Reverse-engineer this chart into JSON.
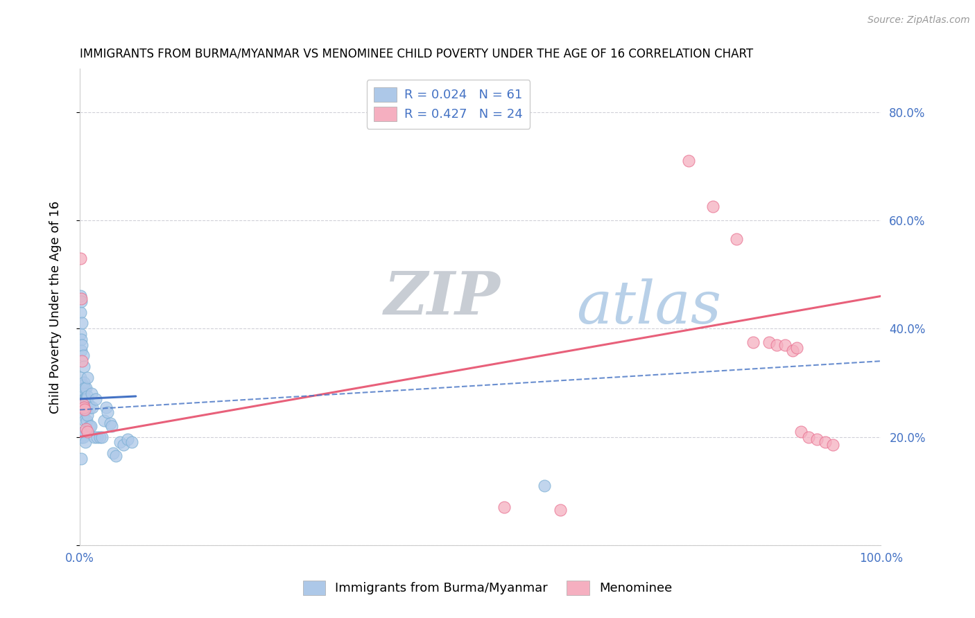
{
  "title": "IMMIGRANTS FROM BURMA/MYANMAR VS MENOMINEE CHILD POVERTY UNDER THE AGE OF 16 CORRELATION CHART",
  "source": "Source: ZipAtlas.com",
  "ylabel": "Child Poverty Under the Age of 16",
  "series1_label": "Immigrants from Burma/Myanmar",
  "series2_label": "Menominee",
  "series1_R": 0.024,
  "series1_N": 61,
  "series2_R": 0.427,
  "series2_N": 24,
  "series1_color": "#adc8e8",
  "series2_color": "#f5afc0",
  "series1_edge": "#7bafd4",
  "series2_edge": "#e87090",
  "trend1_color": "#4472c4",
  "trend2_color": "#e8607a",
  "legend_text_color": "#4472c4",
  "axis_label_color": "#4472c4",
  "background_color": "#ffffff",
  "grid_color": "#d0d0d8",
  "watermark_zip_color": "#c8cdd4",
  "watermark_atlas_color": "#b8d0e8",
  "xlim": [
    0,
    1.0
  ],
  "ylim": [
    0,
    0.88
  ],
  "xticklabels": [
    "0.0%",
    "",
    "",
    "",
    "",
    "100.0%"
  ],
  "yticklabels_right": [
    "",
    "20.0%",
    "40.0%",
    "60.0%",
    "80.0%"
  ],
  "blue_points_x": [
    0.001,
    0.001,
    0.001,
    0.001,
    0.001,
    0.002,
    0.002,
    0.002,
    0.002,
    0.002,
    0.002,
    0.003,
    0.003,
    0.003,
    0.003,
    0.003,
    0.003,
    0.004,
    0.004,
    0.004,
    0.004,
    0.004,
    0.005,
    0.005,
    0.005,
    0.005,
    0.006,
    0.006,
    0.006,
    0.007,
    0.007,
    0.008,
    0.008,
    0.009,
    0.009,
    0.01,
    0.01,
    0.01,
    0.011,
    0.012,
    0.013,
    0.014,
    0.015,
    0.016,
    0.018,
    0.02,
    0.022,
    0.025,
    0.028,
    0.03,
    0.033,
    0.035,
    0.038,
    0.04,
    0.042,
    0.045,
    0.05,
    0.055,
    0.06,
    0.065,
    0.58
  ],
  "blue_points_y": [
    0.46,
    0.43,
    0.39,
    0.31,
    0.2,
    0.45,
    0.38,
    0.36,
    0.27,
    0.27,
    0.16,
    0.41,
    0.37,
    0.29,
    0.275,
    0.25,
    0.2,
    0.35,
    0.295,
    0.28,
    0.24,
    0.2,
    0.33,
    0.3,
    0.27,
    0.21,
    0.29,
    0.27,
    0.23,
    0.27,
    0.19,
    0.29,
    0.27,
    0.27,
    0.23,
    0.31,
    0.275,
    0.24,
    0.26,
    0.22,
    0.255,
    0.22,
    0.28,
    0.255,
    0.2,
    0.27,
    0.2,
    0.2,
    0.2,
    0.23,
    0.255,
    0.245,
    0.225,
    0.22,
    0.17,
    0.165,
    0.19,
    0.185,
    0.195,
    0.19,
    0.11
  ],
  "pink_points_x": [
    0.001,
    0.002,
    0.003,
    0.004,
    0.005,
    0.006,
    0.008,
    0.01,
    0.53,
    0.76,
    0.79,
    0.82,
    0.84,
    0.86,
    0.87,
    0.88,
    0.89,
    0.895,
    0.9,
    0.91,
    0.92,
    0.93,
    0.94,
    0.6
  ],
  "pink_points_y": [
    0.53,
    0.455,
    0.34,
    0.26,
    0.255,
    0.25,
    0.215,
    0.21,
    0.07,
    0.71,
    0.625,
    0.565,
    0.375,
    0.375,
    0.37,
    0.37,
    0.36,
    0.365,
    0.21,
    0.2,
    0.195,
    0.19,
    0.185,
    0.065
  ],
  "trend1_x": [
    0.0,
    0.07
  ],
  "trend1_y": [
    0.27,
    0.275
  ],
  "trend2_x": [
    0.0,
    1.0
  ],
  "trend2_y": [
    0.2,
    0.46
  ],
  "dashed_trend_x": [
    0.0,
    1.0
  ],
  "dashed_trend_y": [
    0.25,
    0.34
  ]
}
